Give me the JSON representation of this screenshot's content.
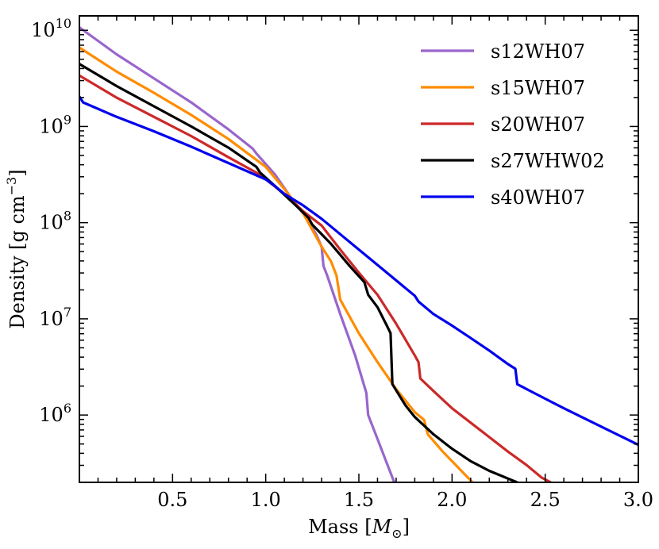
{
  "chart_data": {
    "type": "line",
    "title": "",
    "xlabel": "Mass [M⊙]",
    "xlabel_text": "Mass [",
    "xlabel_symbol": "M",
    "xlabel_subscript": "⊙",
    "xlabel_close": "]",
    "ylabel": "Density [g cm⁻³]",
    "ylabel_text": "Density [g cm",
    "ylabel_exp": "−3",
    "ylabel_close": "]",
    "xlim": [
      0.0,
      3.0
    ],
    "ylim_log10": [
      5.3,
      10.15
    ],
    "yscale": "log",
    "xticks": [
      0.5,
      1.0,
      1.5,
      2.0,
      2.5,
      3.0
    ],
    "xtick_labels": [
      "0.5",
      "1.0",
      "1.5",
      "2.0",
      "2.5",
      "3.0"
    ],
    "yticks_log10": [
      6,
      7,
      8,
      9,
      10
    ],
    "ytick_base": "10",
    "ytick_exps": [
      "6",
      "7",
      "8",
      "9",
      "10"
    ],
    "legend_position": "top-right",
    "series": [
      {
        "name": "s12WH07",
        "color": "#9966cc",
        "points": [
          [
            0.0,
            10.03
          ],
          [
            0.2,
            9.75
          ],
          [
            0.4,
            9.5
          ],
          [
            0.6,
            9.25
          ],
          [
            0.8,
            8.97
          ],
          [
            0.93,
            8.77
          ],
          [
            0.95,
            8.72
          ],
          [
            1.05,
            8.5
          ],
          [
            1.15,
            8.22
          ],
          [
            1.22,
            8.05
          ],
          [
            1.27,
            7.88
          ],
          [
            1.3,
            7.75
          ],
          [
            1.31,
            7.55
          ],
          [
            1.33,
            7.45
          ],
          [
            1.4,
            7.05
          ],
          [
            1.48,
            6.62
          ],
          [
            1.54,
            6.23
          ],
          [
            1.55,
            6.0
          ],
          [
            1.6,
            5.75
          ],
          [
            1.65,
            5.5
          ],
          [
            1.69,
            5.3
          ]
        ]
      },
      {
        "name": "s15WH07",
        "color": "#ff8c00",
        "points": [
          [
            0.0,
            9.82
          ],
          [
            0.2,
            9.57
          ],
          [
            0.4,
            9.35
          ],
          [
            0.6,
            9.12
          ],
          [
            0.8,
            8.87
          ],
          [
            1.0,
            8.58
          ],
          [
            1.1,
            8.35
          ],
          [
            1.2,
            8.1
          ],
          [
            1.3,
            7.75
          ],
          [
            1.35,
            7.6
          ],
          [
            1.38,
            7.45
          ],
          [
            1.4,
            7.2
          ],
          [
            1.5,
            6.85
          ],
          [
            1.6,
            6.55
          ],
          [
            1.7,
            6.27
          ],
          [
            1.8,
            6.03
          ],
          [
            1.85,
            5.95
          ],
          [
            1.87,
            5.8
          ],
          [
            1.95,
            5.62
          ],
          [
            2.05,
            5.42
          ],
          [
            2.11,
            5.3
          ]
        ]
      },
      {
        "name": "s20WH07",
        "color": "#cc2929",
        "points": [
          [
            0.0,
            9.53
          ],
          [
            0.2,
            9.3
          ],
          [
            0.4,
            9.1
          ],
          [
            0.6,
            8.9
          ],
          [
            0.8,
            8.68
          ],
          [
            0.95,
            8.52
          ],
          [
            1.0,
            8.45
          ],
          [
            1.1,
            8.3
          ],
          [
            1.2,
            8.12
          ],
          [
            1.3,
            7.97
          ],
          [
            1.4,
            7.72
          ],
          [
            1.5,
            7.48
          ],
          [
            1.6,
            7.25
          ],
          [
            1.7,
            6.95
          ],
          [
            1.8,
            6.62
          ],
          [
            1.82,
            6.55
          ],
          [
            1.83,
            6.38
          ],
          [
            1.9,
            6.25
          ],
          [
            2.0,
            6.07
          ],
          [
            2.1,
            5.92
          ],
          [
            2.2,
            5.77
          ],
          [
            2.3,
            5.62
          ],
          [
            2.4,
            5.48
          ],
          [
            2.48,
            5.35
          ],
          [
            2.53,
            5.3
          ]
        ]
      },
      {
        "name": "s27WHW02",
        "color": "#000000",
        "points": [
          [
            0.0,
            9.65
          ],
          [
            0.2,
            9.42
          ],
          [
            0.4,
            9.21
          ],
          [
            0.6,
            9.0
          ],
          [
            0.8,
            8.78
          ],
          [
            0.95,
            8.58
          ],
          [
            0.97,
            8.52
          ],
          [
            1.05,
            8.38
          ],
          [
            1.15,
            8.2
          ],
          [
            1.23,
            8.05
          ],
          [
            1.25,
            7.98
          ],
          [
            1.35,
            7.78
          ],
          [
            1.45,
            7.55
          ],
          [
            1.53,
            7.38
          ],
          [
            1.55,
            7.25
          ],
          [
            1.6,
            7.12
          ],
          [
            1.65,
            6.93
          ],
          [
            1.67,
            6.85
          ],
          [
            1.68,
            6.32
          ],
          [
            1.75,
            6.1
          ],
          [
            1.8,
            5.98
          ],
          [
            1.9,
            5.8
          ],
          [
            2.0,
            5.65
          ],
          [
            2.1,
            5.52
          ],
          [
            2.2,
            5.42
          ],
          [
            2.3,
            5.34
          ],
          [
            2.35,
            5.3
          ]
        ]
      },
      {
        "name": "s40WH07",
        "color": "#0000ee",
        "points": [
          [
            0.0,
            9.31
          ],
          [
            0.02,
            9.25
          ],
          [
            0.2,
            9.1
          ],
          [
            0.4,
            8.95
          ],
          [
            0.6,
            8.79
          ],
          [
            0.8,
            8.62
          ],
          [
            1.0,
            8.45
          ],
          [
            1.05,
            8.38
          ],
          [
            1.1,
            8.3
          ],
          [
            1.2,
            8.18
          ],
          [
            1.3,
            8.04
          ],
          [
            1.4,
            7.88
          ],
          [
            1.5,
            7.72
          ],
          [
            1.6,
            7.56
          ],
          [
            1.7,
            7.4
          ],
          [
            1.8,
            7.24
          ],
          [
            1.82,
            7.18
          ],
          [
            1.9,
            7.05
          ],
          [
            2.0,
            6.93
          ],
          [
            2.1,
            6.8
          ],
          [
            2.2,
            6.67
          ],
          [
            2.3,
            6.53
          ],
          [
            2.34,
            6.48
          ],
          [
            2.35,
            6.32
          ],
          [
            2.45,
            6.22
          ],
          [
            2.6,
            6.07
          ],
          [
            2.8,
            5.88
          ],
          [
            3.0,
            5.69
          ]
        ]
      }
    ]
  }
}
